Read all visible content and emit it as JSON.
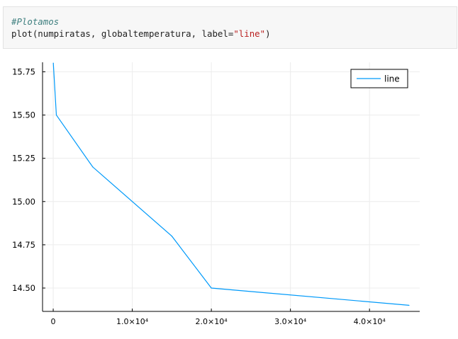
{
  "code_cell": {
    "comment": "#Plotamos",
    "code_func": "plot(numpiratas, globaltemperatura, label=",
    "code_string": "\"line\"",
    "code_close": ")"
  },
  "colors": {
    "series": "#009AFA",
    "axis": "#000000",
    "grid": "#ececec",
    "comment": "#408080",
    "string": "#ba2121"
  },
  "chart_data": {
    "type": "line",
    "title": "",
    "xlabel": "",
    "ylabel": "",
    "legend_position": "top-right",
    "grid": true,
    "xlim": [
      -1350,
      46350
    ],
    "ylim": [
      14.365,
      15.805
    ],
    "xticks": [
      {
        "value": 0,
        "label": "0"
      },
      {
        "value": 10000,
        "label": "1.0×10⁴"
      },
      {
        "value": 20000,
        "label": "2.0×10⁴"
      },
      {
        "value": 30000,
        "label": "3.0×10⁴"
      },
      {
        "value": 40000,
        "label": "4.0×10⁴"
      }
    ],
    "yticks": [
      {
        "value": 14.5,
        "label": "14.50"
      },
      {
        "value": 14.75,
        "label": "14.75"
      },
      {
        "value": 15.0,
        "label": "15.00"
      },
      {
        "value": 15.25,
        "label": "15.25"
      },
      {
        "value": 15.5,
        "label": "15.50"
      },
      {
        "value": 15.75,
        "label": "15.75"
      }
    ],
    "series": [
      {
        "name": "line",
        "x": [
          45000,
          20000,
          15000,
          5000,
          400,
          17
        ],
        "y": [
          14.4,
          14.5,
          14.8,
          15.2,
          15.5,
          15.8
        ]
      }
    ]
  }
}
